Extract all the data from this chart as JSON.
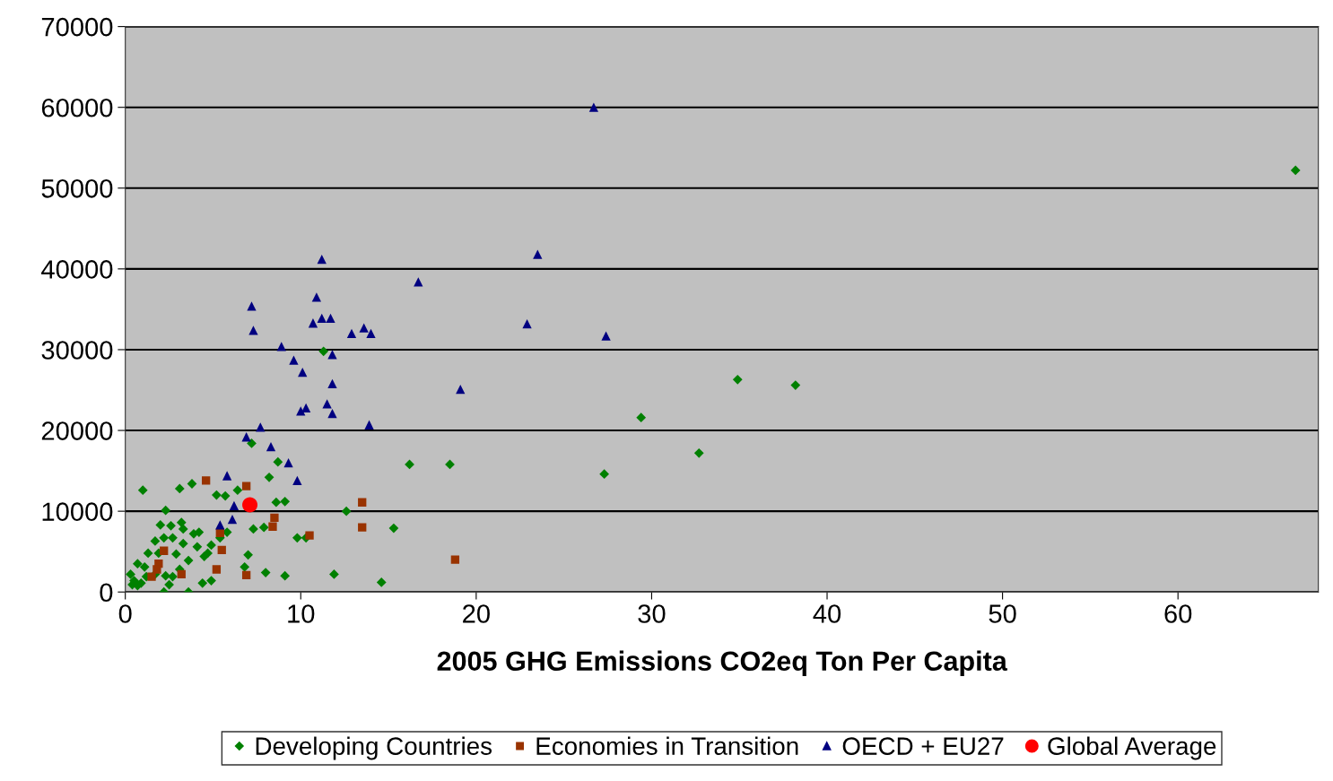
{
  "chart_data": {
    "type": "scatter",
    "xlabel": "2005 GHG Emissions CO2eq Ton Per Capita",
    "xlim": [
      0,
      68
    ],
    "xticks": [
      0,
      10,
      20,
      30,
      40,
      50,
      60
    ],
    "ylim": [
      0,
      70000
    ],
    "yticks": [
      0,
      10000,
      20000,
      30000,
      40000,
      50000,
      60000,
      70000
    ],
    "grid": "y",
    "legend": "bottom",
    "series": [
      {
        "name": "Developing Countries",
        "color": "#008000",
        "marker": "diamond",
        "x": [
          66.7,
          34.9,
          38.2,
          29.4,
          32.7,
          27.3,
          16.2,
          18.5,
          11.3,
          15.3,
          14.6,
          11.9,
          12.6,
          9.8,
          10.3,
          9.1,
          9.1,
          7.2,
          8.7,
          8.2,
          5.2,
          5.7,
          6.4,
          8.6,
          1.0,
          3.1,
          3.8,
          2.3,
          7.3,
          7.9,
          2.0,
          2.6,
          3.2,
          2.2,
          2.7,
          3.3,
          3.9,
          4.2,
          1.7,
          3.3,
          4.1,
          4.9,
          1.3,
          1.9,
          2.9,
          3.6,
          4.5,
          4.7,
          5.4,
          5.8,
          7.0,
          6.8,
          8.0,
          0.7,
          1.1,
          0.3,
          0.5,
          0.9,
          0.4,
          0.7,
          1.7,
          2.3,
          2.7,
          2.5,
          2.2,
          3.6,
          4.4,
          4.9,
          3.1,
          1.2
        ],
        "values": [
          52200,
          26300,
          25600,
          21600,
          17200,
          14600,
          15800,
          15800,
          29800,
          7900,
          1200,
          2200,
          10000,
          6700,
          6700,
          11200,
          2000,
          18400,
          16100,
          14200,
          12000,
          11900,
          12600,
          11100,
          12600,
          12800,
          13400,
          10100,
          7800,
          8000,
          8300,
          8200,
          8600,
          6700,
          6700,
          7800,
          7200,
          7400,
          6300,
          6000,
          5600,
          5800,
          4800,
          4800,
          4700,
          3900,
          4400,
          4800,
          6700,
          7400,
          4600,
          3100,
          2400,
          3500,
          3100,
          2200,
          1400,
          1100,
          900,
          800,
          2200,
          2000,
          1900,
          900,
          0,
          0,
          1100,
          1400,
          2800,
          1900
        ]
      },
      {
        "name": "Economies in Transition",
        "color": "#993300",
        "marker": "square",
        "x": [
          4.6,
          6.9,
          8.5,
          8.4,
          5.4,
          5.5,
          2.2,
          5.2,
          6.9,
          3.2,
          1.9,
          1.8,
          1.5,
          13.5,
          13.5,
          10.5,
          18.8
        ],
        "values": [
          13800,
          13100,
          9200,
          8100,
          7300,
          5200,
          5100,
          2800,
          2100,
          2200,
          3500,
          2800,
          1900,
          11100,
          8000,
          7000,
          4000
        ]
      },
      {
        "name": "OECD + EU27",
        "color": "#000080",
        "marker": "triangle",
        "x": [
          26.7,
          11.2,
          23.5,
          16.7,
          10.9,
          7.2,
          7.3,
          10.7,
          11.2,
          11.7,
          12.9,
          13.6,
          14.0,
          22.9,
          27.4,
          8.9,
          11.8,
          9.6,
          10.1,
          11.8,
          19.1,
          11.5,
          10.0,
          10.3,
          11.8,
          7.7,
          13.9,
          6.9,
          8.3,
          9.3,
          9.8,
          5.8,
          6.2,
          5.4,
          6.1
        ],
        "values": [
          60000,
          41200,
          41800,
          38400,
          36500,
          35400,
          32400,
          33300,
          33900,
          33900,
          32000,
          32700,
          32000,
          33200,
          31700,
          30400,
          29400,
          28700,
          27200,
          25800,
          25100,
          23300,
          22400,
          22800,
          22100,
          20400,
          20700,
          19200,
          18000,
          16000,
          13800,
          14400,
          10700,
          8300,
          9000
        ]
      },
      {
        "name": "Global Average",
        "color": "#ff0000",
        "marker": "circle",
        "x": [
          7.1
        ],
        "values": [
          10800
        ]
      }
    ]
  }
}
